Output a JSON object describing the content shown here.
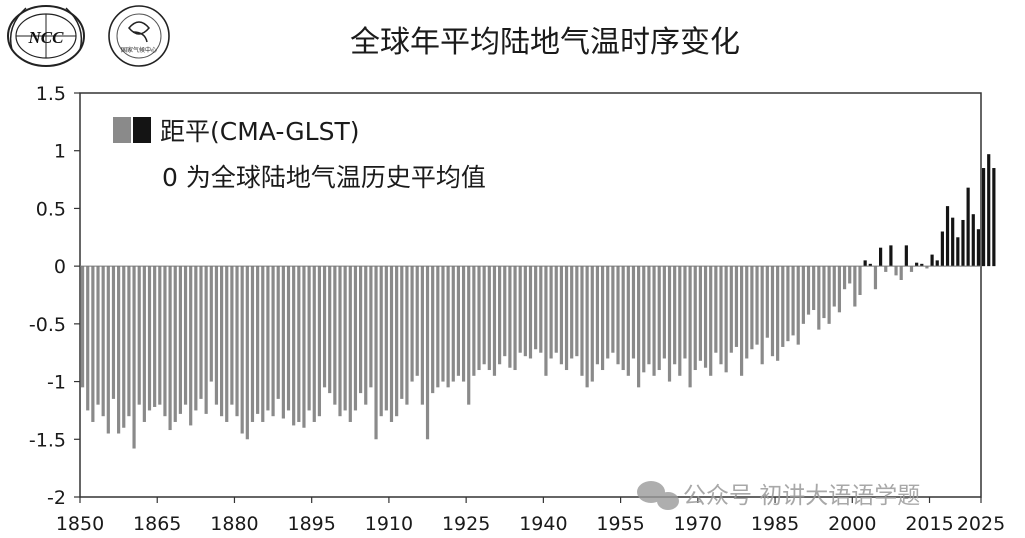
{
  "logos": [
    {
      "name": "ncc-logo",
      "text": "NCC"
    },
    {
      "name": "cma-climate-logo",
      "text": "国家气候中心"
    }
  ],
  "watermark": "公众号 初讲大语语学题",
  "chart_data": {
    "type": "bar",
    "title": "全球年平均陆地气温时序变化",
    "legend": {
      "label": "距平(CMA-GLST)",
      "note": "0 为全球陆地气温历史平均值",
      "placement": "top-left"
    },
    "xlabel": "",
    "ylabel": "",
    "xlim": [
      1850,
      2025
    ],
    "ylim": [
      -2,
      1.5
    ],
    "xticks": [
      1850,
      1865,
      1880,
      1895,
      1910,
      1925,
      1940,
      1955,
      1970,
      1985,
      2000,
      2015,
      2025
    ],
    "yticks": [
      1.5,
      1,
      0.5,
      0,
      -0.5,
      -1,
      -1.5,
      -2
    ],
    "ytick_labels": [
      "1.5",
      "1",
      "0.5",
      "0",
      "-0.5",
      "-1",
      "-1.5",
      "-2"
    ],
    "colors": {
      "negative": "#8a8a8a",
      "positive": "#141414"
    },
    "years_start": 1850,
    "values": [
      -1.05,
      -1.25,
      -1.35,
      -1.2,
      -1.3,
      -1.45,
      -1.15,
      -1.45,
      -1.4,
      -1.3,
      -1.58,
      -1.2,
      -1.35,
      -1.25,
      -1.22,
      -1.2,
      -1.3,
      -1.42,
      -1.35,
      -1.28,
      -1.2,
      -1.38,
      -1.25,
      -1.15,
      -1.28,
      -1.0,
      -1.2,
      -1.3,
      -1.35,
      -1.2,
      -1.3,
      -1.45,
      -1.5,
      -1.35,
      -1.28,
      -1.35,
      -1.25,
      -1.3,
      -1.15,
      -1.32,
      -1.25,
      -1.38,
      -1.35,
      -1.4,
      -1.25,
      -1.35,
      -1.3,
      -1.05,
      -1.1,
      -1.2,
      -1.3,
      -1.25,
      -1.35,
      -1.25,
      -1.1,
      -1.2,
      -1.05,
      -1.5,
      -1.3,
      -1.25,
      -1.35,
      -1.3,
      -1.15,
      -1.2,
      -1.0,
      -0.95,
      -1.2,
      -1.5,
      -1.1,
      -1.05,
      -1.0,
      -1.05,
      -1.0,
      -0.95,
      -1.0,
      -1.2,
      -0.95,
      -0.9,
      -0.85,
      -0.9,
      -0.95,
      -0.85,
      -0.78,
      -0.88,
      -0.9,
      -0.75,
      -0.78,
      -0.8,
      -0.72,
      -0.75,
      -0.95,
      -0.8,
      -0.75,
      -0.85,
      -0.9,
      -0.8,
      -0.78,
      -0.95,
      -1.05,
      -1.0,
      -0.85,
      -0.9,
      -0.8,
      -0.75,
      -0.85,
      -0.9,
      -0.95,
      -0.8,
      -1.05,
      -0.92,
      -0.85,
      -0.95,
      -0.9,
      -0.8,
      -1.0,
      -0.85,
      -0.95,
      -0.8,
      -1.05,
      -0.9,
      -0.82,
      -0.88,
      -0.95,
      -0.75,
      -0.85,
      -0.92,
      -0.75,
      -0.7,
      -0.95,
      -0.8,
      -0.72,
      -0.68,
      -0.85,
      -0.62,
      -0.78,
      -0.82,
      -0.7,
      -0.65,
      -0.6,
      -0.68,
      -0.5,
      -0.42,
      -0.38,
      -0.55,
      -0.45,
      -0.5,
      -0.35,
      -0.4,
      -0.2,
      -0.15,
      -0.35,
      -0.25,
      0.05,
      0.02,
      -0.2,
      0.16,
      -0.05,
      0.18,
      -0.08,
      -0.12,
      0.18,
      -0.05,
      0.03,
      0.02,
      -0.02,
      0.1,
      0.05,
      0.3,
      0.52,
      0.42,
      0.25,
      0.4,
      0.68,
      0.45,
      0.32,
      0.85,
      0.97,
      0.85
    ]
  }
}
